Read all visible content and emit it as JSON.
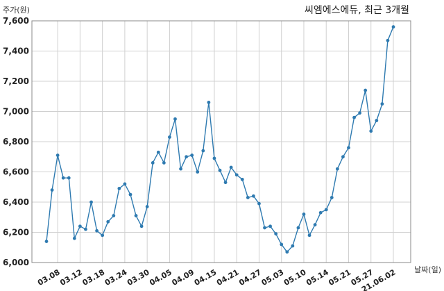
{
  "chart_data": {
    "type": "line",
    "title": "씨엠에스에듀, 최근 3개월",
    "ylabel": "주가(원)",
    "xlabel": "날짜(일)",
    "ylim": [
      6000,
      7600
    ],
    "yticks": [
      "6,000",
      "6,200",
      "6,400",
      "6,600",
      "6,800",
      "7,000",
      "7,200",
      "7,400",
      "7,600"
    ],
    "ytick_values": [
      6000,
      6200,
      6400,
      6600,
      6800,
      7000,
      7200,
      7400,
      7600
    ],
    "xticks": [
      "03.08",
      "03.12",
      "03.18",
      "03.24",
      "03.30",
      "04.05",
      "04.09",
      "04.15",
      "04.21",
      "04.27",
      "05.03",
      "05.10",
      "05.14",
      "05.21",
      "05.27",
      "21.06.02"
    ],
    "xtick_index": [
      2,
      6,
      10,
      14,
      18,
      22,
      26,
      30,
      34,
      38,
      42,
      46,
      50,
      54,
      58,
      62
    ],
    "grid": true,
    "line_color": "#2e7ab0",
    "series": [
      {
        "values": [
          6140,
          6480,
          6710,
          6560,
          6560,
          6160,
          6240,
          6220,
          6400,
          6210,
          6180,
          6270,
          6310,
          6490,
          6520,
          6450,
          6310,
          6240,
          6370,
          6660,
          6730,
          6660,
          6830,
          6950,
          6620,
          6700,
          6710,
          6600,
          6740,
          7060,
          6690,
          6610,
          6530,
          6630,
          6580,
          6550,
          6430,
          6440,
          6390,
          6230,
          6240,
          6190,
          6120,
          6070,
          6110,
          6230,
          6320,
          6180,
          6250,
          6330,
          6350,
          6430,
          6620,
          6700,
          6760,
          6960,
          6990,
          7140,
          6870,
          6940,
          7050,
          7470,
          7560
        ]
      }
    ]
  }
}
